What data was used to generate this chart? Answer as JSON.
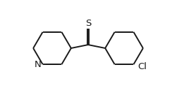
{
  "background_color": "#ffffff",
  "line_color": "#1a1a1a",
  "line_width": 1.4,
  "dbo": 0.006,
  "font_size": 9.5,
  "N_label": "N",
  "S_label": "S",
  "Cl_label": "Cl",
  "fig_width": 2.61,
  "fig_height": 1.36,
  "dpi": 100,
  "xlim": [
    0,
    2.61
  ],
  "ylim": [
    0,
    1.36
  ]
}
